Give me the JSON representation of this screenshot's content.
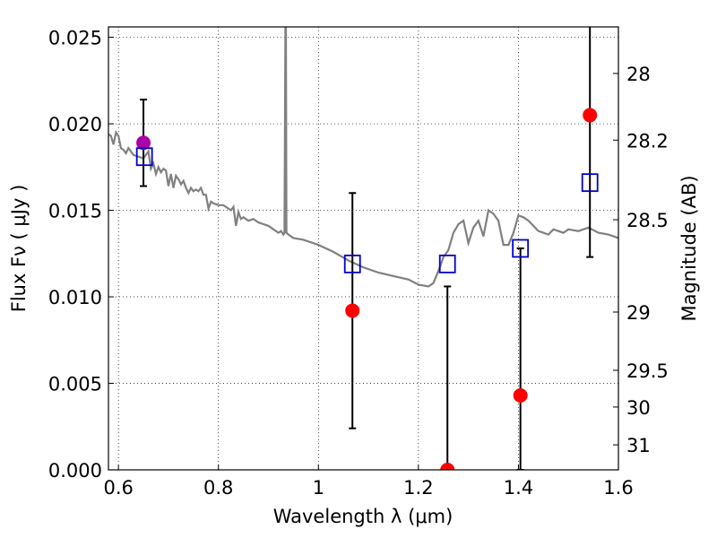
{
  "chart_data": {
    "type": "scatter",
    "xlabel": "Wavelength  λ (μm)",
    "ylabel_left": "Flux  Fν  ( μJy )",
    "ylabel_right": "Magnitude (AB)",
    "xlim": [
      0.58,
      1.6
    ],
    "ylim": [
      0.0,
      0.0256
    ],
    "x_ticks": [
      {
        "value": 0.6,
        "label": "0.6"
      },
      {
        "value": 0.8,
        "label": "0.8"
      },
      {
        "value": 1.0,
        "label": "1"
      },
      {
        "value": 1.2,
        "label": "1.2"
      },
      {
        "value": 1.4,
        "label": "1.4"
      },
      {
        "value": 1.6,
        "label": "1.6"
      }
    ],
    "y_ticks": [
      {
        "value": 0.0,
        "label": "0.000"
      },
      {
        "value": 0.005,
        "label": "0.005"
      },
      {
        "value": 0.01,
        "label": "0.010"
      },
      {
        "value": 0.015,
        "label": "0.015"
      },
      {
        "value": 0.02,
        "label": "0.020"
      },
      {
        "value": 0.025,
        "label": "0.025"
      }
    ],
    "right_ticks": [
      {
        "value": 28,
        "label": "28"
      },
      {
        "value": 28.2,
        "label": "28.2"
      },
      {
        "value": 28.5,
        "label": "28.5"
      },
      {
        "value": 29,
        "label": "29"
      },
      {
        "value": 29.5,
        "label": "29.5"
      },
      {
        "value": 30,
        "label": "30"
      },
      {
        "value": 31,
        "label": "31"
      }
    ],
    "grid": true,
    "colors": {
      "model": "#808080",
      "observed": "#ff0000",
      "highlight": "#aa00aa",
      "synthetic": "#0000cc",
      "errorbar": "#000000"
    },
    "model_spectrum": {
      "x": [
        0.58,
        0.585,
        0.59,
        0.595,
        0.6,
        0.605,
        0.61,
        0.615,
        0.62,
        0.63,
        0.64,
        0.65,
        0.66,
        0.665,
        0.67,
        0.675,
        0.68,
        0.685,
        0.69,
        0.695,
        0.7,
        0.705,
        0.71,
        0.715,
        0.72,
        0.725,
        0.73,
        0.735,
        0.74,
        0.745,
        0.75,
        0.755,
        0.76,
        0.765,
        0.77,
        0.775,
        0.78,
        0.785,
        0.79,
        0.8,
        0.81,
        0.82,
        0.825,
        0.83,
        0.835,
        0.84,
        0.845,
        0.85,
        0.86,
        0.87,
        0.88,
        0.89,
        0.9,
        0.91,
        0.92,
        0.925,
        0.93,
        0.932,
        0.934,
        0.935,
        0.936,
        0.94,
        0.95,
        0.97,
        1.0,
        1.03,
        1.06,
        1.09,
        1.12,
        1.15,
        1.18,
        1.2,
        1.22,
        1.23,
        1.24,
        1.25,
        1.26,
        1.27,
        1.28,
        1.29,
        1.3,
        1.31,
        1.32,
        1.33,
        1.34,
        1.35,
        1.36,
        1.37,
        1.38,
        1.39,
        1.4,
        1.41,
        1.42,
        1.43,
        1.44,
        1.45,
        1.46,
        1.47,
        1.48,
        1.49,
        1.5,
        1.52,
        1.54,
        1.56,
        1.58,
        1.6
      ],
      "y": [
        0.0194,
        0.0193,
        0.0188,
        0.0195,
        0.0193,
        0.0186,
        0.0185,
        0.0183,
        0.0186,
        0.0182,
        0.0181,
        0.018,
        0.0184,
        0.0174,
        0.0177,
        0.0171,
        0.0175,
        0.0172,
        0.0174,
        0.0173,
        0.0164,
        0.0171,
        0.0163,
        0.017,
        0.0168,
        0.0165,
        0.0167,
        0.0163,
        0.016,
        0.0163,
        0.0161,
        0.0162,
        0.0161,
        0.0163,
        0.0159,
        0.0159,
        0.0151,
        0.0155,
        0.0154,
        0.0153,
        0.0153,
        0.0151,
        0.015,
        0.0152,
        0.0141,
        0.0149,
        0.0145,
        0.0146,
        0.0144,
        0.0145,
        0.0143,
        0.0142,
        0.0141,
        0.0139,
        0.0137,
        0.0138,
        0.0136,
        0.0137,
        0.026,
        0.0256,
        0.0137,
        0.0136,
        0.0134,
        0.0133,
        0.013,
        0.0126,
        0.0121,
        0.0117,
        0.0114,
        0.0112,
        0.011,
        0.0107,
        0.0106,
        0.0108,
        0.0115,
        0.0123,
        0.0127,
        0.0137,
        0.0142,
        0.0144,
        0.0131,
        0.014,
        0.0144,
        0.0135,
        0.015,
        0.0148,
        0.0144,
        0.013,
        0.013,
        0.0137,
        0.0147,
        0.0146,
        0.0144,
        0.0141,
        0.0138,
        0.0137,
        0.0136,
        0.0139,
        0.0138,
        0.0137,
        0.0139,
        0.0138,
        0.014,
        0.0137,
        0.0136,
        0.0134
      ]
    },
    "observed": [
      {
        "x": 0.65,
        "y": 0.0189,
        "err_low": 0.0025,
        "err_high": 0.0025,
        "highlight": true
      },
      {
        "x": 1.068,
        "y": 0.0092,
        "err_low": 0.0068,
        "err_high": 0.0068
      },
      {
        "x": 1.258,
        "y": 0.0,
        "err_low": 0.0,
        "err_high": 0.0106
      },
      {
        "x": 1.404,
        "y": 0.0043,
        "err_low": 0.0043,
        "err_high": 0.0085
      },
      {
        "x": 1.543,
        "y": 0.0205,
        "err_low": 0.0082,
        "err_high": 0.0082
      }
    ],
    "synthetic": [
      {
        "x": 0.652,
        "y": 0.0181
      },
      {
        "x": 1.068,
        "y": 0.0119
      },
      {
        "x": 1.258,
        "y": 0.0119
      },
      {
        "x": 1.404,
        "y": 0.0128
      },
      {
        "x": 1.543,
        "y": 0.0166
      }
    ]
  }
}
